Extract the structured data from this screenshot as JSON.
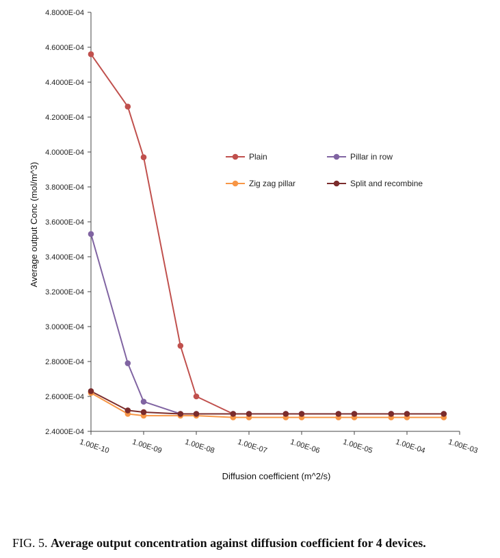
{
  "chart_data": {
    "type": "line",
    "xlabel": "Diffusion coefficient (m^2/s)",
    "ylabel": "Average output Conc (mol/m^3)",
    "x_scale": "log",
    "xlim": [
      1e-10,
      0.001
    ],
    "x_tick_values": [
      1e-10,
      1e-09,
      1e-08,
      1e-07,
      1e-06,
      1e-05,
      0.0001,
      0.001
    ],
    "x_tick_labels": [
      "1.00E-10",
      "1.00E-09",
      "1.00E-08",
      "1.00E-07",
      "1.00E-06",
      "1.00E-05",
      "1.00E-04",
      "1.00E-03"
    ],
    "ylim": [
      0.00024,
      0.00048
    ],
    "y_tick_values": [
      0.00024,
      0.00026,
      0.00028,
      0.0003,
      0.00032,
      0.00034,
      0.00036,
      0.00038,
      0.0004,
      0.00042,
      0.00044,
      0.00046,
      0.00048
    ],
    "y_tick_labels": [
      "2.4000E-04",
      "2.6000E-04",
      "2.8000E-04",
      "3.0000E-04",
      "3.2000E-04",
      "3.4000E-04",
      "3.6000E-04",
      "3.8000E-04",
      "4.0000E-04",
      "4.2000E-04",
      "4.4000E-04",
      "4.6000E-04",
      "4.8000E-04"
    ],
    "grid": false,
    "legend_position": "upper-right",
    "x": [
      1e-10,
      5e-10,
      1e-09,
      5e-09,
      1e-08,
      5e-08,
      1e-07,
      5e-07,
      1e-06,
      5e-06,
      1e-05,
      5e-05,
      0.0001,
      0.0005
    ],
    "series": [
      {
        "name": "Plain",
        "color": "#c0504d",
        "values": [
          0.000456,
          0.000426,
          0.000397,
          0.000289,
          0.00026,
          0.00025,
          0.00025,
          0.00025,
          0.00025,
          0.00025,
          0.00025,
          0.00025,
          0.00025,
          0.00025
        ]
      },
      {
        "name": "Pillar in row",
        "color": "#8064a2",
        "values": [
          0.000353,
          0.000279,
          0.000257,
          0.00025,
          0.00025,
          0.00025,
          0.00025,
          0.00025,
          0.00025,
          0.00025,
          0.00025,
          0.00025,
          0.00025,
          0.00025
        ]
      },
      {
        "name": "Zig zag pillar",
        "color": "#f79646",
        "values": [
          0.000262,
          0.00025,
          0.000249,
          0.000249,
          0.000249,
          0.000248,
          0.000248,
          0.000248,
          0.000248,
          0.000248,
          0.000248,
          0.000248,
          0.000248,
          0.000248
        ]
      },
      {
        "name": "Split and recombine",
        "color": "#7b2c2c",
        "values": [
          0.000263,
          0.000252,
          0.000251,
          0.00025,
          0.00025,
          0.00025,
          0.00025,
          0.00025,
          0.00025,
          0.00025,
          0.00025,
          0.00025,
          0.00025,
          0.00025
        ]
      }
    ]
  },
  "caption": {
    "prefix": "FIG. 5.",
    "text": "Average output concentration against diffusion coefficient for 4 devices."
  }
}
